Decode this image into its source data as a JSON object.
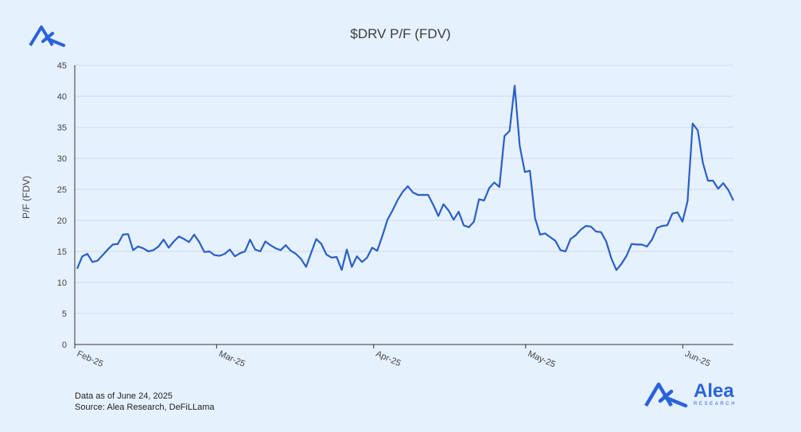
{
  "brand": {
    "name": "Alea",
    "tagline": "RESEARCH",
    "color": "#2a63d8"
  },
  "footnote": {
    "line1": "Data as of June 24, 2025",
    "line2": "Source: Alea Research, DeFiLLama"
  },
  "chart_data": {
    "type": "line",
    "title": "$DRV P/F (FDV)",
    "ylabel": "P/F (FDV)",
    "xlabel": "",
    "ylim": [
      0,
      45
    ],
    "yticks": [
      0,
      5,
      10,
      15,
      20,
      25,
      30,
      35,
      40,
      45
    ],
    "grid": true,
    "x_ticks": [
      {
        "label": "Feb-25",
        "date": "2025-02-01"
      },
      {
        "label": "Mar-25",
        "date": "2025-03-01"
      },
      {
        "label": "Apr-25",
        "date": "2025-04-01"
      },
      {
        "label": "May-25",
        "date": "2025-05-01"
      },
      {
        "label": "Jun-25",
        "date": "2025-06-01"
      }
    ],
    "x_start": "2025-02-01",
    "x_end": "2025-06-11",
    "line_color": "#2a5fc4",
    "series": [
      {
        "values": [
          12.2,
          14.2,
          14.6,
          13.3,
          13.5,
          14.4,
          15.3,
          16.1,
          16.2,
          17.7,
          17.8,
          15.2,
          15.8,
          15.5,
          15.0,
          15.2,
          15.8,
          16.9,
          15.6,
          16.6,
          17.4,
          17.0,
          16.5,
          17.7,
          16.5,
          14.9,
          15.0,
          14.4,
          14.3,
          14.6,
          15.3,
          14.2,
          14.7,
          15.0,
          16.9,
          15.3,
          15.0,
          16.6,
          16.0,
          15.5,
          15.2,
          16.0,
          15.1,
          14.6,
          13.8,
          12.5,
          14.8,
          17.0,
          16.2,
          14.5,
          14.0,
          14.1,
          12.0,
          15.3,
          12.5,
          14.2,
          13.3,
          14.0,
          15.6,
          15.1,
          17.5,
          20.1,
          21.6,
          23.3,
          24.6,
          25.5,
          24.5,
          24.1,
          24.1,
          24.1,
          22.5,
          20.7,
          22.6,
          21.6,
          20.1,
          21.4,
          19.2,
          18.9,
          19.8,
          23.4,
          23.2,
          25.2,
          26.1,
          25.4,
          33.6,
          34.4,
          41.7,
          32.0,
          27.8,
          28.0,
          20.4,
          17.7,
          17.9,
          17.3,
          16.7,
          15.2,
          15.0,
          17.0,
          17.6,
          18.5,
          19.1,
          19.0,
          18.2,
          18.1,
          16.6,
          13.9,
          12.0,
          13.0,
          14.3,
          16.2,
          16.1,
          16.1,
          15.8,
          16.9,
          18.8,
          19.1,
          19.2,
          21.1,
          21.3,
          19.8,
          23.1,
          35.6,
          34.5,
          29.3,
          26.4,
          26.4,
          25.1,
          26.0,
          24.9,
          23.2
        ]
      }
    ]
  }
}
